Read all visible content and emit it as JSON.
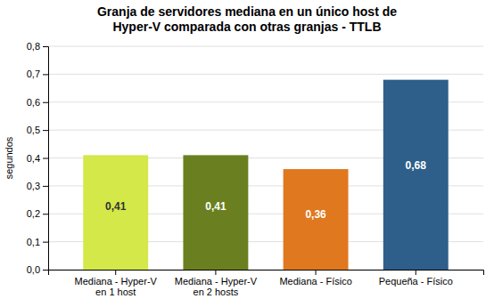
{
  "chart_data": {
    "type": "bar",
    "title": "Granja de servidores mediana en un único host de\nHyper-V comparada con otras granjas - TTLB",
    "categories": [
      "Mediana - Hyper-V\nen 1 host",
      "Mediana - Hyper-V\nen 2 hosts",
      "Mediana - Físico",
      "Pequeña - Físico"
    ],
    "values": [
      0.41,
      0.41,
      0.36,
      0.68
    ],
    "value_labels": [
      "0,41",
      "0,41",
      "0,36",
      "0,68"
    ],
    "colors": [
      "#d4e84a",
      "#6a8020",
      "#e07820",
      "#2e5f8a"
    ],
    "ylabel": "segundos",
    "ylim": [
      0,
      0.8
    ],
    "yticks": [
      {
        "value": 0,
        "label": "0,0"
      },
      {
        "value": 0.1,
        "label": "0,1"
      },
      {
        "value": 0.2,
        "label": "0,2"
      },
      {
        "value": 0.3,
        "label": "0,3"
      },
      {
        "value": 0.4,
        "label": "0,4"
      },
      {
        "value": 0.5,
        "label": "0,5"
      },
      {
        "value": 0.6,
        "label": "0,6"
      },
      {
        "value": 0.7,
        "label": "0,7"
      },
      {
        "value": 0.8,
        "label": "0,8"
      }
    ],
    "grid": true,
    "data_labels": true
  }
}
